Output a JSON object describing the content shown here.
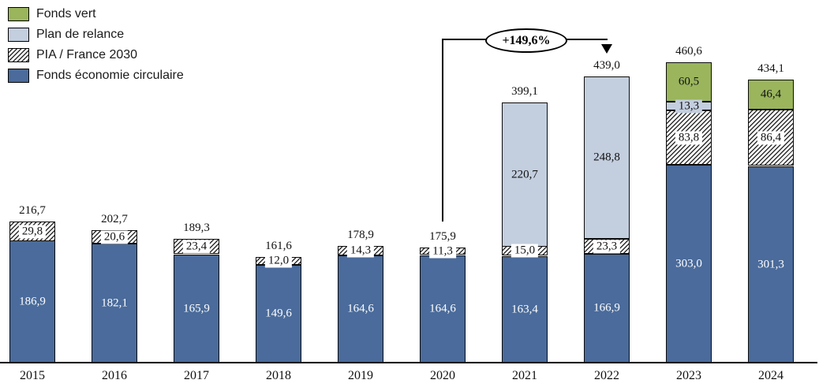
{
  "legend": {
    "items": [
      {
        "label": "Fonds vert",
        "swatch": "solid",
        "color": "#9ab55c",
        "icon": "green-swatch"
      },
      {
        "label": "Plan de relance",
        "swatch": "solid",
        "color": "#c3cede",
        "icon": "lightblue-swatch"
      },
      {
        "label": "PIA / France 2030",
        "swatch": "hatch",
        "color": "#ffffff",
        "icon": "hatch-swatch"
      },
      {
        "label": "Fonds économie circulaire",
        "swatch": "solid",
        "color": "#4a6b9b",
        "icon": "darkblue-swatch"
      }
    ]
  },
  "annotation": {
    "label": "+149,6%",
    "from_category": "2020",
    "to_category": "2022"
  },
  "colors": {
    "fonds_vert": "#9ab55c",
    "plan_de_relance": "#c3cede",
    "fonds_economie_circulaire": "#4a6b9b",
    "hatch_line": "#2e2e2e",
    "axis": "#000000"
  },
  "chart_data": {
    "type": "bar",
    "stacked": true,
    "grid": false,
    "y_axis_visible": false,
    "categories": [
      "2015",
      "2016",
      "2017",
      "2018",
      "2019",
      "2020",
      "2021",
      "2022",
      "2023",
      "2024"
    ],
    "series": [
      {
        "name": "Fonds économie circulaire",
        "color": "#4a6b9b",
        "pattern": "solid",
        "text_color": "#ffffff",
        "values": [
          186.9,
          182.1,
          165.9,
          149.6,
          164.6,
          164.6,
          163.4,
          166.9,
          303.0,
          301.3
        ],
        "labels": [
          "186,9",
          "182,1",
          "165,9",
          "149,6",
          "164,6",
          "164,6",
          "163,4",
          "166,9",
          "303,0",
          "301,3"
        ]
      },
      {
        "name": "PIA / France 2030",
        "color": "#ffffff",
        "pattern": "hatch",
        "text_color": "#111111",
        "chip_color": "#ffffff",
        "values": [
          29.8,
          20.6,
          23.4,
          12.0,
          14.3,
          11.3,
          15.0,
          23.3,
          83.8,
          86.4
        ],
        "labels": [
          "29,8",
          "20,6",
          "23,4",
          "12,0",
          "14,3",
          "11,3",
          "15,0",
          "23,3",
          "83,8",
          "86,4"
        ]
      },
      {
        "name": "Plan de relance",
        "color": "#c3cede",
        "pattern": "solid",
        "text_color": "#111111",
        "values": [
          null,
          null,
          null,
          null,
          null,
          null,
          220.7,
          248.8,
          13.3,
          null
        ],
        "labels": [
          "",
          "",
          "",
          "",
          "",
          "",
          "220,7",
          "248,8",
          "13,3",
          ""
        ]
      },
      {
        "name": "Fonds vert",
        "color": "#9ab55c",
        "pattern": "solid",
        "text_color": "#111111",
        "values": [
          null,
          null,
          null,
          null,
          null,
          null,
          null,
          null,
          60.5,
          46.4
        ],
        "labels": [
          "",
          "",
          "",
          "",
          "",
          "",
          "",
          "",
          "60,5",
          "46,4"
        ]
      }
    ],
    "totals": [
      216.7,
      202.7,
      189.3,
      161.6,
      178.9,
      175.9,
      399.1,
      439.0,
      460.6,
      434.1
    ],
    "total_labels": [
      "216,7",
      "202,7",
      "189,3",
      "161,6",
      "178,9",
      "175,9",
      "399,1",
      "439,0",
      "460,6",
      "434,1"
    ],
    "annotation": {
      "label": "+149,6%",
      "from_category": "2020",
      "to_category": "2022"
    }
  }
}
